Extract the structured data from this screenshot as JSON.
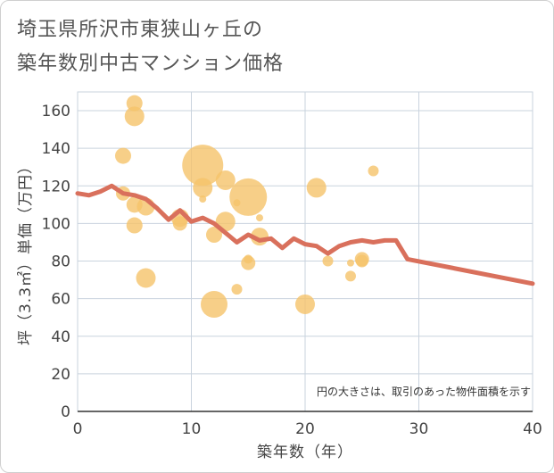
{
  "title_lines": [
    "埼玉県所沢市東狭山ヶ丘の",
    "築年数別中古マンション価格"
  ],
  "colors": {
    "bubble": "#f5c36a",
    "line": "#d9705c",
    "grid": "#c9d3de",
    "plot_bg": "#ffffff"
  },
  "chart_data": {
    "type": "scatter",
    "title": "埼玉県所沢市東狭山ヶ丘の築年数別中古マンション価格",
    "xlabel": "築年数（年）",
    "ylabel": "坪（3.3㎡）単価（万円）",
    "xlim": [
      0,
      40
    ],
    "ylim": [
      0,
      170
    ],
    "xticks": [
      0,
      10,
      20,
      30,
      40
    ],
    "yticks": [
      0,
      20,
      40,
      60,
      80,
      100,
      120,
      140,
      160
    ],
    "grid": true,
    "note": "円の大きさは、取引のあった物件面積を示す",
    "bubbles": [
      {
        "x": 4,
        "y": 136,
        "r": 9
      },
      {
        "x": 4,
        "y": 116,
        "r": 8
      },
      {
        "x": 5,
        "y": 164,
        "r": 9
      },
      {
        "x": 5,
        "y": 157,
        "r": 11
      },
      {
        "x": 5,
        "y": 110,
        "r": 9
      },
      {
        "x": 5,
        "y": 99,
        "r": 9
      },
      {
        "x": 6,
        "y": 109,
        "r": 10
      },
      {
        "x": 6,
        "y": 71,
        "r": 11
      },
      {
        "x": 9,
        "y": 103,
        "r": 10
      },
      {
        "x": 9,
        "y": 100,
        "r": 8
      },
      {
        "x": 11,
        "y": 131,
        "r": 23
      },
      {
        "x": 11,
        "y": 119,
        "r": 11
      },
      {
        "x": 11,
        "y": 113,
        "r": 4
      },
      {
        "x": 12,
        "y": 94,
        "r": 9
      },
      {
        "x": 12,
        "y": 57,
        "r": 15
      },
      {
        "x": 13,
        "y": 123,
        "r": 11
      },
      {
        "x": 13,
        "y": 101,
        "r": 11
      },
      {
        "x": 14,
        "y": 111,
        "r": 4
      },
      {
        "x": 14,
        "y": 65,
        "r": 6
      },
      {
        "x": 15,
        "y": 114,
        "r": 21
      },
      {
        "x": 15,
        "y": 81,
        "r": 5
      },
      {
        "x": 15,
        "y": 79,
        "r": 8
      },
      {
        "x": 16,
        "y": 93,
        "r": 10
      },
      {
        "x": 16,
        "y": 103,
        "r": 4
      },
      {
        "x": 20,
        "y": 57,
        "r": 11
      },
      {
        "x": 21,
        "y": 119,
        "r": 11
      },
      {
        "x": 22,
        "y": 80,
        "r": 6
      },
      {
        "x": 24,
        "y": 79,
        "r": 4
      },
      {
        "x": 24,
        "y": 72,
        "r": 6
      },
      {
        "x": 25,
        "y": 81,
        "r": 8
      },
      {
        "x": 25,
        "y": 80,
        "r": 7
      },
      {
        "x": 26,
        "y": 128,
        "r": 6
      }
    ],
    "series": [
      {
        "x": [
          0,
          1,
          2,
          3,
          4,
          5,
          6,
          7,
          8,
          9,
          10,
          11,
          12,
          13,
          14,
          15,
          16,
          17,
          18,
          19,
          20,
          21,
          22,
          23,
          24,
          25,
          26,
          27,
          28,
          29,
          40
        ],
        "values": [
          116,
          115,
          117,
          120,
          116,
          115,
          113,
          108,
          102,
          107,
          101,
          103,
          100,
          95,
          90,
          94,
          91,
          92,
          87,
          92,
          89,
          88,
          84,
          88,
          90,
          91,
          90,
          91,
          91,
          81,
          68
        ]
      }
    ]
  }
}
